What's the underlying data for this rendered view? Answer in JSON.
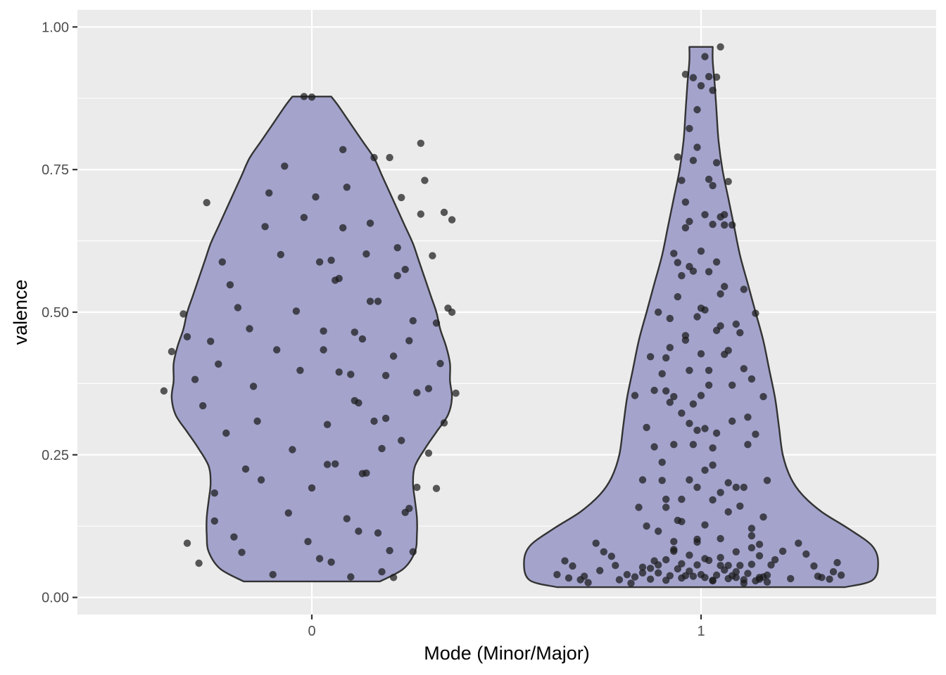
{
  "chart_data": {
    "type": "violin",
    "title": "",
    "xlabel": "Mode (Minor/Major)",
    "ylabel": "valence",
    "categories": [
      "0",
      "1"
    ],
    "ylim": [
      -0.03,
      1.03
    ],
    "y_ticks": [
      0.0,
      0.25,
      0.5,
      0.75,
      1.0
    ],
    "y_tick_labels": [
      "0.00",
      "0.25",
      "0.50",
      "0.75",
      "1.00"
    ],
    "grid": true,
    "legend": "none",
    "violin_fill": "#a3a3cc",
    "violin_stroke": "#333333",
    "point_color": "#1a1a1a",
    "panel_background": "#ebebeb",
    "violins": [
      {
        "category": "0",
        "profile": [
          [
            0.028,
            0.175
          ],
          [
            0.05,
            0.235
          ],
          [
            0.08,
            0.265
          ],
          [
            0.11,
            0.27
          ],
          [
            0.14,
            0.27
          ],
          [
            0.17,
            0.265
          ],
          [
            0.2,
            0.26
          ],
          [
            0.23,
            0.265
          ],
          [
            0.26,
            0.29
          ],
          [
            0.29,
            0.32
          ],
          [
            0.32,
            0.35
          ],
          [
            0.35,
            0.36
          ],
          [
            0.38,
            0.355
          ],
          [
            0.41,
            0.355
          ],
          [
            0.44,
            0.345
          ],
          [
            0.47,
            0.33
          ],
          [
            0.5,
            0.32
          ],
          [
            0.53,
            0.305
          ],
          [
            0.56,
            0.29
          ],
          [
            0.59,
            0.275
          ],
          [
            0.62,
            0.26
          ],
          [
            0.65,
            0.24
          ],
          [
            0.68,
            0.22
          ],
          [
            0.71,
            0.2
          ],
          [
            0.74,
            0.18
          ],
          [
            0.77,
            0.16
          ],
          [
            0.8,
            0.13
          ],
          [
            0.83,
            0.1
          ],
          [
            0.86,
            0.07
          ],
          [
            0.878,
            0.05
          ]
        ]
      },
      {
        "category": "1",
        "profile": [
          [
            0.018,
            0.37
          ],
          [
            0.03,
            0.44
          ],
          [
            0.06,
            0.455
          ],
          [
            0.09,
            0.44
          ],
          [
            0.12,
            0.38
          ],
          [
            0.15,
            0.31
          ],
          [
            0.18,
            0.26
          ],
          [
            0.21,
            0.23
          ],
          [
            0.25,
            0.21
          ],
          [
            0.3,
            0.2
          ],
          [
            0.35,
            0.19
          ],
          [
            0.4,
            0.175
          ],
          [
            0.45,
            0.16
          ],
          [
            0.5,
            0.14
          ],
          [
            0.55,
            0.12
          ],
          [
            0.6,
            0.1
          ],
          [
            0.65,
            0.085
          ],
          [
            0.7,
            0.07
          ],
          [
            0.75,
            0.055
          ],
          [
            0.8,
            0.045
          ],
          [
            0.85,
            0.04
          ],
          [
            0.9,
            0.035
          ],
          [
            0.94,
            0.03
          ],
          [
            0.965,
            0.03
          ]
        ]
      }
    ],
    "points": [
      {
        "category": "0",
        "x": [
          -0.38,
          -0.36,
          -0.33,
          -0.32,
          -0.3,
          -0.28,
          -0.26,
          -0.25,
          -0.24,
          -0.23,
          -0.22,
          -0.21,
          -0.2,
          -0.19,
          -0.18,
          -0.17,
          -0.16,
          -0.15,
          -0.14,
          -0.13,
          -0.12,
          -0.11,
          -0.1,
          -0.09,
          -0.08,
          -0.07,
          -0.06,
          -0.05,
          -0.04,
          -0.03,
          -0.02,
          -0.01,
          0.0,
          0.01,
          0.02,
          0.03,
          0.04,
          0.05,
          0.06,
          0.07,
          0.08,
          0.09,
          0.1,
          0.11,
          0.12,
          0.13,
          0.14,
          0.15,
          0.16,
          0.17,
          0.18,
          0.19,
          0.2,
          0.21,
          0.22,
          0.23,
          0.24,
          0.25,
          0.26,
          0.27,
          0.28,
          0.3,
          0.32,
          0.34,
          0.36
        ],
        "y": [
          0.362,
          0.431,
          0.497,
          0.457,
          0.382,
          0.336,
          0.449,
          0.183,
          0.409,
          0.588,
          0.288,
          0.548,
          0.106,
          0.508,
          0.079,
          0.225,
          0.471,
          0.37,
          0.309,
          0.206,
          0.65,
          0.709,
          0.04,
          0.434,
          0.601,
          0.756,
          0.148,
          0.259,
          0.502,
          0.398,
          0.666,
          0.098,
          0.192,
          0.702,
          0.068,
          0.467,
          0.303,
          0.591,
          0.234,
          0.559,
          0.785,
          0.138,
          0.391,
          0.345,
          0.116,
          0.453,
          0.218,
          0.656,
          0.771,
          0.519,
          0.045,
          0.314,
          0.082,
          0.423,
          0.613,
          0.275,
          0.575,
          0.156,
          0.485,
          0.359,
          0.796,
          0.366,
          0.191,
          0.675,
          0.5
        ]
      },
      {
        "category": "0",
        "x": [
          0.02,
          0.03,
          0.04,
          0.05,
          0.06,
          0.07,
          0.08,
          0.09,
          0.1,
          0.11,
          0.12,
          0.13,
          0.14,
          0.15,
          0.16,
          0.17,
          0.18,
          0.19,
          0.2,
          0.21,
          0.22,
          0.23,
          0.24,
          0.25,
          0.26,
          0.27,
          0.28,
          0.29,
          0.3,
          0.31,
          0.32,
          0.33,
          0.34,
          0.35,
          0.36,
          0.37,
          -0.32,
          -0.29,
          -0.27,
          -0.25,
          -0.02,
          0.0
        ],
        "y": [
          0.588,
          0.434,
          0.233,
          0.062,
          0.556,
          0.395,
          0.648,
          0.719,
          0.036,
          0.465,
          0.341,
          0.217,
          0.602,
          0.519,
          0.309,
          0.113,
          0.261,
          0.389,
          0.771,
          0.035,
          0.564,
          0.701,
          0.149,
          0.45,
          0.08,
          0.193,
          0.672,
          0.731,
          0.253,
          0.599,
          0.481,
          0.41,
          0.306,
          0.507,
          0.662,
          0.358,
          0.095,
          0.06,
          0.692,
          0.134,
          0.878,
          0.877
        ]
      },
      {
        "category": "1",
        "x": [
          -0.37,
          -0.35,
          -0.34,
          -0.33,
          -0.31,
          -0.3,
          -0.29,
          -0.27,
          -0.26,
          -0.25,
          -0.23,
          -0.22,
          -0.21,
          -0.19,
          -0.18,
          -0.17,
          -0.15,
          -0.14,
          -0.13,
          -0.12,
          -0.11,
          -0.1,
          -0.09,
          -0.08,
          -0.07,
          -0.06,
          -0.05,
          -0.04,
          -0.03,
          -0.02,
          -0.01,
          0.0,
          0.01,
          0.02,
          0.03,
          0.04,
          0.05,
          0.06,
          0.07,
          0.08,
          0.09,
          0.1,
          0.11,
          0.12,
          0.13,
          0.14,
          0.15,
          0.16,
          0.17,
          0.18,
          0.19,
          0.21,
          0.23,
          0.25,
          0.27,
          0.29,
          0.3,
          0.31,
          0.33,
          0.34,
          0.35,
          0.36
        ],
        "y": [
          0.04,
          0.064,
          0.034,
          0.055,
          0.031,
          0.037,
          0.026,
          0.095,
          0.047,
          0.08,
          0.072,
          0.056,
          0.031,
          0.04,
          0.025,
          0.036,
          0.043,
          0.125,
          0.032,
          0.064,
          0.057,
          0.205,
          0.03,
          0.038,
          0.081,
          0.05,
          0.034,
          0.038,
          0.074,
          0.037,
          0.057,
          0.04,
          0.035,
          0.065,
          0.03,
          0.039,
          0.056,
          0.048,
          0.033,
          0.038,
          0.035,
          0.056,
          0.025,
          0.042,
          0.058,
          0.029,
          0.032,
          0.036,
          0.039,
          0.057,
          0.066,
          0.081,
          0.033,
          0.095,
          0.076,
          0.055,
          0.037,
          0.035,
          0.032,
          0.045,
          0.061,
          0.039
        ]
      },
      {
        "category": "1",
        "x": [
          -0.17,
          -0.16,
          -0.15,
          -0.14,
          -0.13,
          -0.12,
          -0.11,
          -0.1,
          -0.09,
          -0.08,
          -0.07,
          -0.06,
          -0.05,
          -0.04,
          -0.03,
          -0.02,
          -0.01,
          0.0,
          0.01,
          0.02,
          0.03,
          0.04,
          0.05,
          0.06,
          0.07,
          0.08,
          0.09,
          0.1,
          0.11,
          0.12,
          0.13,
          0.14,
          0.15,
          0.16,
          0.17,
          -0.12,
          -0.1,
          -0.08,
          -0.06,
          -0.04,
          -0.02,
          0.0,
          0.02,
          0.04,
          0.06,
          0.08,
          0.1,
          0.12,
          0.14,
          0.16,
          -0.09,
          -0.07,
          -0.05,
          -0.03,
          -0.01,
          0.01,
          0.03,
          0.05,
          0.07,
          0.09,
          0.11,
          0.13,
          0.15
        ],
        "y": [
          0.354,
          0.158,
          0.206,
          0.298,
          0.422,
          0.264,
          0.5,
          0.392,
          0.172,
          0.342,
          0.603,
          0.135,
          0.564,
          0.451,
          0.305,
          0.268,
          0.193,
          0.354,
          0.223,
          0.398,
          0.262,
          0.468,
          0.184,
          0.545,
          0.201,
          0.309,
          0.479,
          0.16,
          0.401,
          0.268,
          0.121,
          0.286,
          0.073,
          0.352,
          0.205,
          0.363,
          0.237,
          0.438,
          0.527,
          0.648,
          0.339,
          0.427,
          0.571,
          0.288,
          0.653,
          0.372,
          0.464,
          0.316,
          0.498,
          0.141,
          0.362,
          0.268,
          0.172,
          0.58,
          0.293,
          0.504,
          0.232,
          0.667,
          0.433,
          0.193,
          0.54,
          0.383,
          0.093
        ]
      },
      {
        "category": "1",
        "x": [
          -0.09,
          -0.08,
          -0.07,
          -0.06,
          -0.05,
          -0.04,
          -0.03,
          -0.02,
          -0.01,
          0.0,
          0.01,
          0.02,
          0.03,
          0.04,
          0.05,
          0.06,
          0.07,
          0.08,
          -0.06,
          -0.05,
          -0.04,
          -0.03,
          -0.02,
          -0.01,
          0.0,
          0.01,
          0.02,
          0.03,
          0.04,
          0.05,
          0.06,
          -0.03,
          -0.01,
          0.0,
          0.02,
          0.04,
          0.01,
          -0.02,
          0.03,
          -0.04,
          0.05
        ],
        "y": [
          0.42,
          0.489,
          0.352,
          0.587,
          0.323,
          0.459,
          0.398,
          0.572,
          0.492,
          0.507,
          0.296,
          0.372,
          0.654,
          0.588,
          0.476,
          0.671,
          0.729,
          0.653,
          0.772,
          0.731,
          0.693,
          0.659,
          0.766,
          0.789,
          0.607,
          0.671,
          0.733,
          0.722,
          0.762,
          0.532,
          0.426,
          0.822,
          0.855,
          0.897,
          0.913,
          0.912,
          0.948,
          0.911,
          0.889,
          0.917,
          0.965
        ]
      },
      {
        "category": "1",
        "x": [
          -0.11,
          -0.09,
          -0.07,
          -0.05,
          -0.03,
          -0.01,
          0.01,
          0.03,
          0.05,
          0.07,
          0.09,
          0.11,
          0.13,
          -0.13,
          -0.11,
          -0.09,
          -0.07,
          -0.05,
          -0.03,
          -0.01,
          0.01,
          0.03,
          0.05,
          0.07,
          0.09,
          0.11,
          0.13,
          0.15,
          -0.15,
          0.17
        ],
        "y": [
          0.116,
          0.158,
          0.098,
          0.133,
          0.206,
          0.097,
          0.127,
          0.171,
          0.103,
          0.15,
          0.08,
          0.193,
          0.087,
          0.051,
          0.043,
          0.066,
          0.084,
          0.059,
          0.046,
          0.102,
          0.068,
          0.029,
          0.07,
          0.056,
          0.045,
          0.031,
          0.108,
          0.035,
          0.053,
          0.027
        ]
      }
    ]
  }
}
